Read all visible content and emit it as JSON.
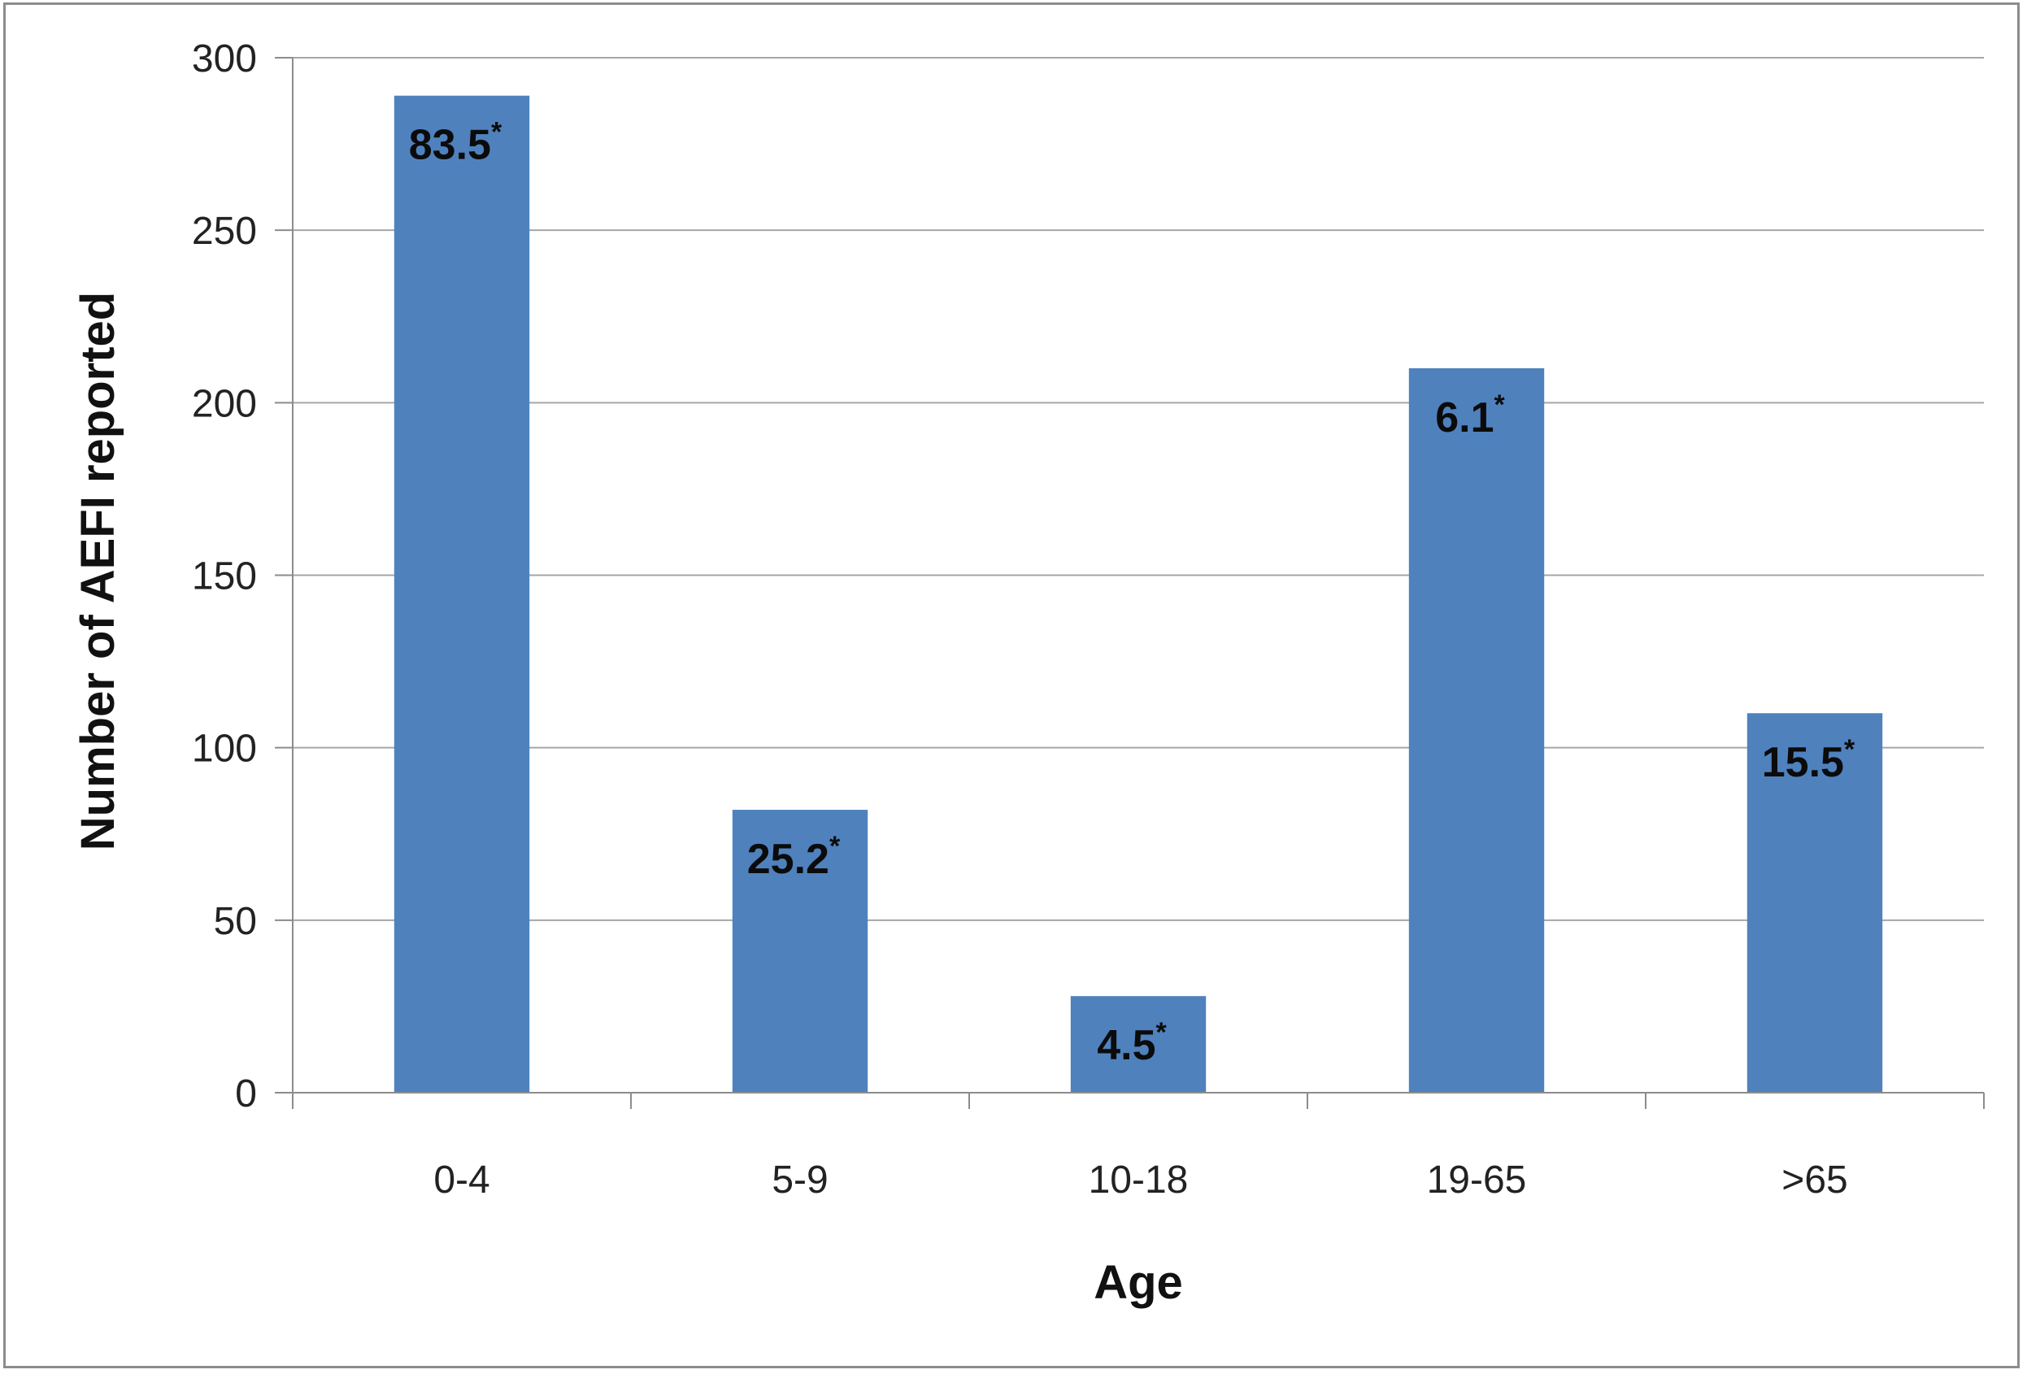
{
  "chart_data": {
    "type": "bar",
    "title": "",
    "xlabel": "Age",
    "ylabel": "Number of AEFI  reported",
    "categories": [
      "0-4",
      "5-9",
      "10-18",
      "19-65",
      ">65"
    ],
    "values": [
      289,
      82,
      28,
      210,
      110
    ],
    "data_labels": [
      "83.5",
      "25.2",
      "4.5",
      "6.1",
      "15.5"
    ],
    "data_label_marker": "*",
    "ylim": [
      0,
      300
    ],
    "yticks": [
      0,
      50,
      100,
      150,
      200,
      250,
      300
    ],
    "grid": true,
    "legend": "none",
    "bar_color": "#4F81BD",
    "grid_color": "#a6a6a6"
  }
}
